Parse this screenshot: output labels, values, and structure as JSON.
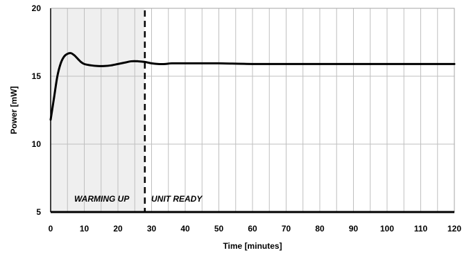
{
  "chart_data": {
    "type": "line",
    "title": "",
    "xlabel": "Time [minutes]",
    "ylabel": "Power  [mW]",
    "xlim": [
      0,
      120
    ],
    "ylim": [
      5,
      20
    ],
    "x_ticks": [
      0,
      10,
      20,
      30,
      40,
      50,
      60,
      70,
      80,
      90,
      100,
      110,
      120
    ],
    "y_ticks": [
      5,
      10,
      15,
      20
    ],
    "grid": true,
    "grid_x_step": 5,
    "grid_y_step": 5,
    "series": [
      {
        "x": [
          0,
          1,
          2,
          3,
          4,
          5,
          6,
          7,
          8,
          9,
          10,
          12,
          14,
          16,
          18,
          20,
          22,
          24,
          26,
          28,
          30,
          32,
          34,
          36,
          40,
          45,
          50,
          60,
          70,
          80,
          90,
          100,
          110,
          120
        ],
        "values": [
          11.8,
          13.4,
          15.0,
          15.95,
          16.45,
          16.65,
          16.7,
          16.55,
          16.3,
          16.05,
          15.9,
          15.8,
          15.75,
          15.75,
          15.8,
          15.9,
          16.0,
          16.1,
          16.1,
          16.05,
          15.95,
          15.9,
          15.9,
          15.95,
          15.95,
          15.95,
          15.95,
          15.9,
          15.9,
          15.9,
          15.9,
          15.9,
          15.9,
          15.9
        ],
        "color": "#000000"
      }
    ],
    "regions": [
      {
        "x_start": 0,
        "x_end": 28,
        "label": "WARMING UP",
        "fill": "#efefef"
      },
      {
        "x_start": 28,
        "x_end": 120,
        "label": "UNIT READY",
        "fill": "#ffffff"
      }
    ],
    "divider_x": 28
  }
}
